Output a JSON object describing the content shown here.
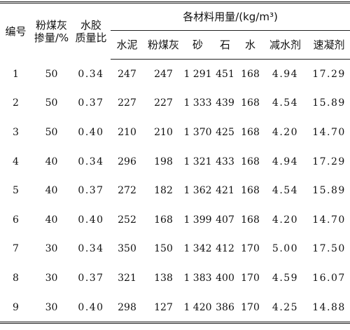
{
  "header": {
    "id": "编号",
    "fly_ash": [
      "粉煤灰",
      "掺量/%"
    ],
    "wb_ratio": [
      "水胶",
      "质量比"
    ],
    "materials": "各材料用量/(kg/m³)",
    "sub": [
      "水泥",
      "粉煤灰",
      "砂",
      "石",
      "水",
      "减水剂",
      "速凝剂"
    ]
  },
  "table": {
    "rows": [
      [
        "1",
        "50",
        "0.34",
        "247",
        "247",
        "1 291",
        "451",
        "168",
        "4.94",
        "17.29"
      ],
      [
        "2",
        "50",
        "0.37",
        "227",
        "227",
        "1 333",
        "439",
        "168",
        "4.54",
        "15.89"
      ],
      [
        "3",
        "50",
        "0.40",
        "210",
        "210",
        "1 370",
        "425",
        "168",
        "4.20",
        "14.70"
      ],
      [
        "4",
        "40",
        "0.34",
        "296",
        "198",
        "1 321",
        "433",
        "168",
        "4.94",
        "17.29"
      ],
      [
        "5",
        "40",
        "0.37",
        "272",
        "182",
        "1 362",
        "421",
        "168",
        "4.54",
        "15.89"
      ],
      [
        "6",
        "40",
        "0.40",
        "252",
        "168",
        "1 399",
        "407",
        "168",
        "4.20",
        "14.70"
      ],
      [
        "7",
        "30",
        "0.34",
        "350",
        "150",
        "1 342",
        "412",
        "170",
        "5.00",
        "17.50"
      ],
      [
        "8",
        "30",
        "0.37",
        "321",
        "138",
        "1 383",
        "400",
        "170",
        "4.59",
        "16.07"
      ],
      [
        "9",
        "30",
        "0.40",
        "298",
        "127",
        "1 420",
        "386",
        "170",
        "4.25",
        "14.88"
      ]
    ]
  }
}
